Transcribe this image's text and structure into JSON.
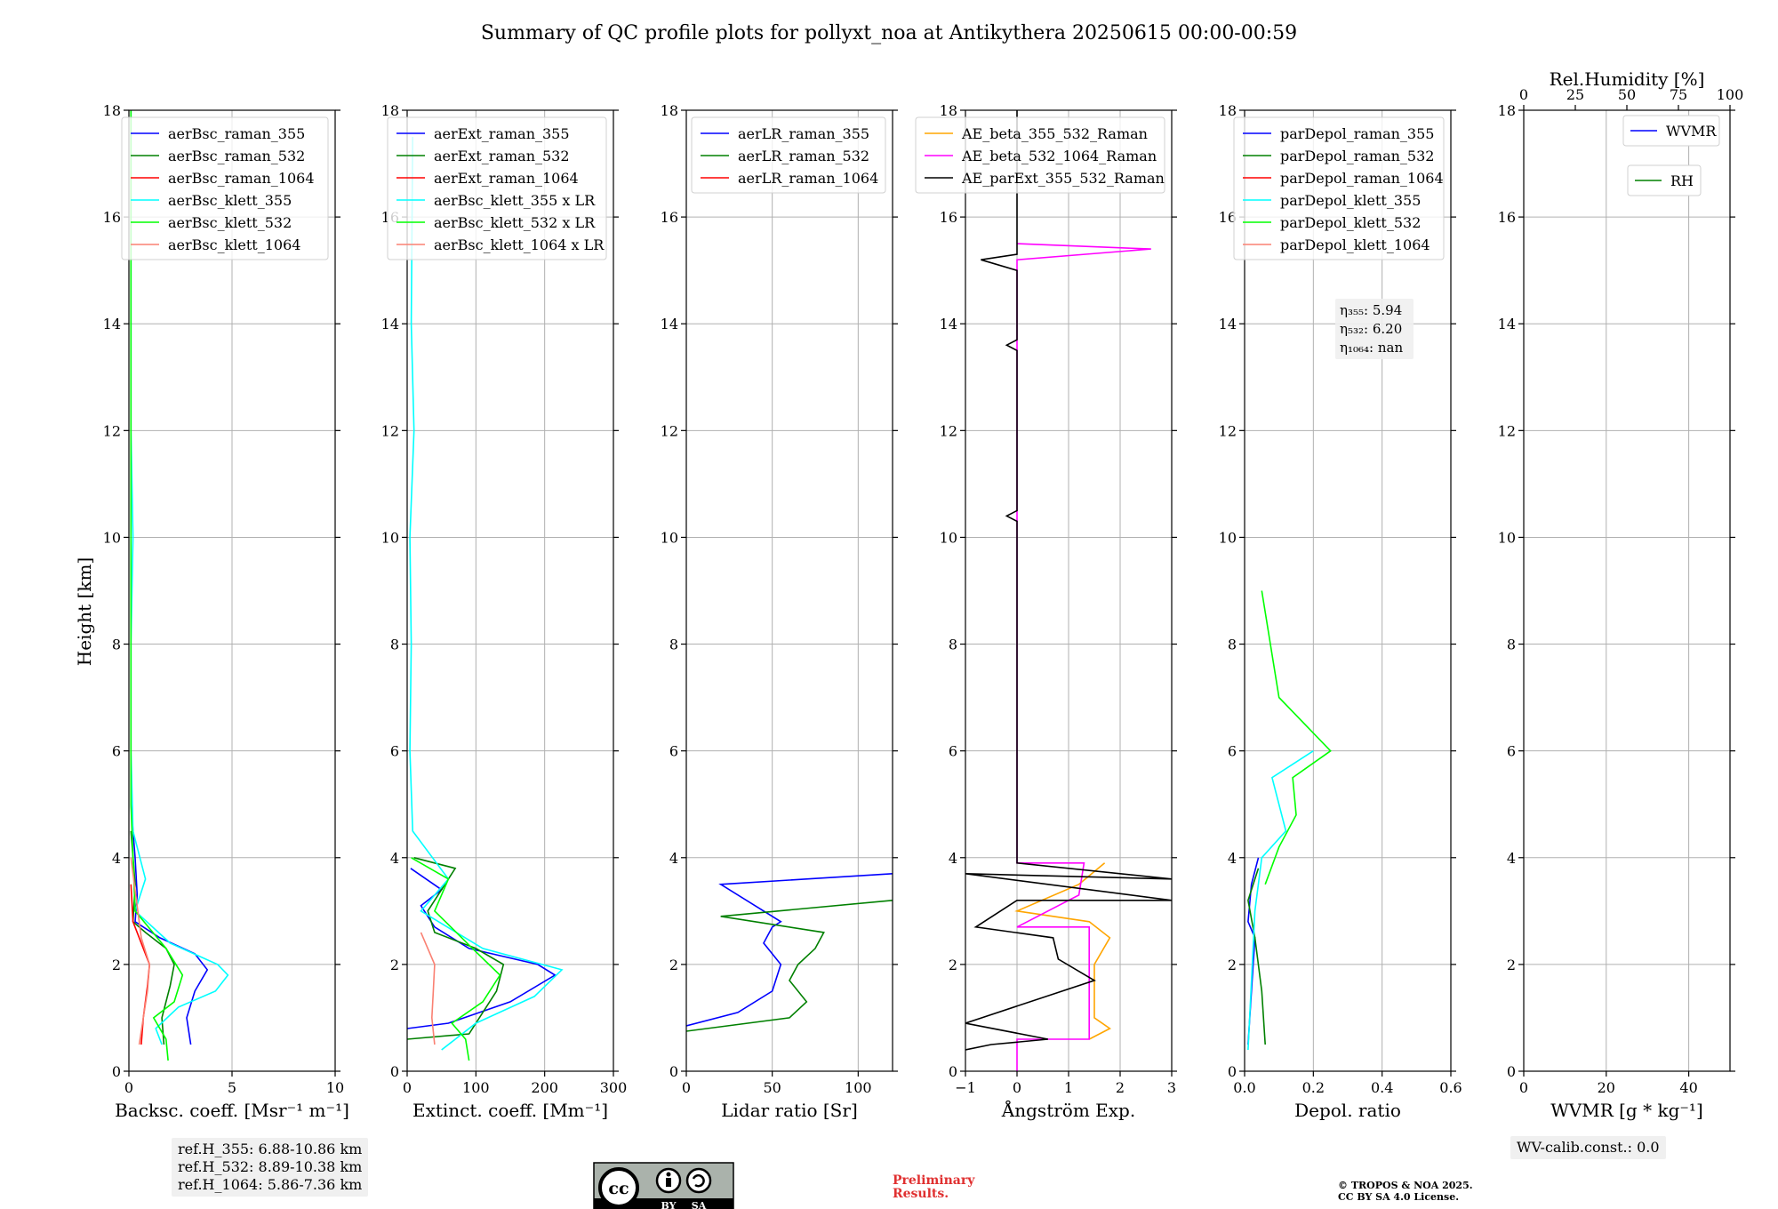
{
  "title": "Summary of QC profile plots for pollyxt_noa at Antikythera 20250615 00:00-00:59",
  "y_label": "Height [km]",
  "y_ticks": [
    "0",
    "2",
    "4",
    "6",
    "8",
    "10",
    "12",
    "14",
    "16",
    "18"
  ],
  "ref_heights": [
    "ref.H_355: 6.88-10.86 km",
    "ref.H_532: 8.89-10.38 km",
    "ref.H_1064: 5.86-7.36 km"
  ],
  "wv_calib": "WV-calib.const.: 0.0",
  "preliminary": [
    "Preliminary",
    "Results."
  ],
  "copyright": [
    "© TROPOS & NOA 2025.",
    "CC BY SA 4.0 License."
  ],
  "license_badge": {
    "by": "BY",
    "sa": "SA",
    "icon": "cc-by-sa-icon"
  },
  "colors": {
    "blue": "#0000ff",
    "green": "#008000",
    "red": "#ff0000",
    "cyan": "#00ffff",
    "lime": "#00ff00",
    "salmon": "#fa8072",
    "orange": "#ffa500",
    "magenta": "#ff00ff",
    "black": "#000000"
  },
  "chart_data": [
    {
      "type": "line",
      "xlabel": "Backsc. coeff. [Msr⁻¹ m⁻¹]",
      "xlim": [
        0,
        10
      ],
      "x_ticks": [
        "0",
        "5",
        "10"
      ],
      "ylim": [
        0,
        18
      ],
      "legend_position": "top-right",
      "grid": true,
      "series": [
        {
          "name": "aerBsc_raman_355",
          "color": "#0000ff",
          "points": [
            [
              3.0,
              0.5
            ],
            [
              2.8,
              1.0
            ],
            [
              3.2,
              1.5
            ],
            [
              3.8,
              1.9
            ],
            [
              3.2,
              2.2
            ],
            [
              1.5,
              2.5
            ],
            [
              0.3,
              2.8
            ],
            [
              0.4,
              3.3
            ],
            [
              0.3,
              4.0
            ],
            [
              0.1,
              5
            ]
          ]
        },
        {
          "name": "aerBsc_raman_532",
          "color": "#008000",
          "points": [
            [
              1.7,
              0.5
            ],
            [
              1.6,
              1.0
            ],
            [
              2.0,
              1.6
            ],
            [
              2.2,
              2.0
            ],
            [
              1.8,
              2.3
            ],
            [
              0.8,
              2.6
            ],
            [
              0.2,
              2.8
            ],
            [
              0.3,
              3.5
            ],
            [
              0.1,
              4.5
            ]
          ]
        },
        {
          "name": "aerBsc_raman_1064",
          "color": "#ff0000",
          "points": [
            [
              0.6,
              0.5
            ],
            [
              0.7,
              1.0
            ],
            [
              0.9,
              1.6
            ],
            [
              1.0,
              2.0
            ],
            [
              0.6,
              2.4
            ],
            [
              0.2,
              2.8
            ],
            [
              0.1,
              3.5
            ]
          ]
        },
        {
          "name": "aerBsc_klett_355",
          "color": "#00ffff",
          "points": [
            [
              0.1,
              18
            ],
            [
              0.1,
              12
            ],
            [
              0.2,
              10
            ],
            [
              0.1,
              8
            ],
            [
              0.1,
              6
            ],
            [
              0.2,
              4.5
            ],
            [
              0.8,
              3.6
            ],
            [
              0.3,
              3.0
            ],
            [
              2.0,
              2.4
            ],
            [
              4.3,
              2.0
            ],
            [
              4.8,
              1.8
            ],
            [
              4.2,
              1.5
            ],
            [
              2.4,
              1.2
            ],
            [
              1.3,
              0.8
            ],
            [
              1.6,
              0.5
            ]
          ]
        },
        {
          "name": "aerBsc_klett_532",
          "color": "#00ff00",
          "points": [
            [
              0.1,
              18
            ],
            [
              0.1,
              10
            ],
            [
              0.1,
              5
            ],
            [
              0.3,
              3.0
            ],
            [
              1.8,
              2.3
            ],
            [
              2.6,
              1.8
            ],
            [
              2.2,
              1.3
            ],
            [
              1.2,
              1.0
            ],
            [
              1.8,
              0.6
            ],
            [
              1.9,
              0.2
            ]
          ]
        },
        {
          "name": "aerBsc_klett_1064",
          "color": "#fa8072",
          "points": [
            [
              0.1,
              4
            ],
            [
              0.6,
              2.5
            ],
            [
              1.0,
              2.0
            ],
            [
              0.9,
              1.5
            ],
            [
              0.7,
              1.0
            ],
            [
              0.5,
              0.5
            ]
          ]
        }
      ]
    },
    {
      "type": "line",
      "xlabel": "Extinct. coeff. [Mm⁻¹]",
      "xlim": [
        0,
        300
      ],
      "x_ticks": [
        "0",
        "100",
        "200",
        "300"
      ],
      "ylim": [
        0,
        18
      ],
      "legend_position": "top-right",
      "grid": true,
      "series": [
        {
          "name": "aerExt_raman_355",
          "color": "#0000ff",
          "points": [
            [
              0,
              0.8
            ],
            [
              60,
              0.9
            ],
            [
              150,
              1.3
            ],
            [
              215,
              1.8
            ],
            [
              190,
              2.0
            ],
            [
              90,
              2.3
            ],
            [
              40,
              2.7
            ],
            [
              20,
              3.1
            ],
            [
              50,
              3.4
            ],
            [
              5,
              3.8
            ]
          ]
        },
        {
          "name": "aerExt_raman_532",
          "color": "#008000",
          "points": [
            [
              0,
              0.6
            ],
            [
              90,
              0.7
            ],
            [
              130,
              1.5
            ],
            [
              140,
              2.0
            ],
            [
              100,
              2.3
            ],
            [
              40,
              2.6
            ],
            [
              30,
              3.0
            ],
            [
              70,
              3.8
            ],
            [
              10,
              4.0
            ]
          ]
        },
        {
          "name": "aerExt_raman_1064",
          "color": "#ff0000",
          "points": []
        },
        {
          "name": "aerBsc_klett_355 x LR",
          "color": "#00ffff",
          "points": [
            [
              8,
              17.5
            ],
            [
              6,
              14
            ],
            [
              10,
              12
            ],
            [
              4,
              10
            ],
            [
              6,
              8
            ],
            [
              4,
              6
            ],
            [
              8,
              4.5
            ],
            [
              60,
              3.6
            ],
            [
              20,
              3.0
            ],
            [
              110,
              2.3
            ],
            [
              225,
              1.9
            ],
            [
              185,
              1.4
            ],
            [
              100,
              0.9
            ],
            [
              50,
              0.4
            ]
          ]
        },
        {
          "name": "aerBsc_klett_532 x LR",
          "color": "#00ff00",
          "points": [
            [
              6,
              4
            ],
            [
              60,
              3.6
            ],
            [
              40,
              3.0
            ],
            [
              95,
              2.3
            ],
            [
              135,
              1.8
            ],
            [
              110,
              1.3
            ],
            [
              65,
              0.9
            ],
            [
              85,
              0.6
            ],
            [
              90,
              0.2
            ]
          ]
        },
        {
          "name": "aerBsc_klett_1064 x LR",
          "color": "#fa8072",
          "points": [
            [
              20,
              2.6
            ],
            [
              40,
              2.0
            ],
            [
              38,
              1.5
            ],
            [
              36,
              1.0
            ],
            [
              40,
              0.5
            ]
          ]
        }
      ]
    },
    {
      "type": "line",
      "xlabel": "Lidar ratio [Sr]",
      "xlim": [
        0,
        120
      ],
      "x_ticks": [
        "0",
        "50",
        "100"
      ],
      "ylim": [
        0,
        18
      ],
      "legend_position": "top-right",
      "grid": true,
      "series": [
        {
          "name": "aerLR_raman_355",
          "color": "#0000ff",
          "points": [
            [
              0,
              0.85
            ],
            [
              30,
              1.1
            ],
            [
              50,
              1.5
            ],
            [
              55,
              2.0
            ],
            [
              45,
              2.4
            ],
            [
              50,
              2.7
            ],
            [
              55,
              2.8
            ],
            [
              20,
              3.5
            ],
            [
              120,
              3.7
            ]
          ]
        },
        {
          "name": "aerLR_raman_532",
          "color": "#008000",
          "points": [
            [
              0,
              0.75
            ],
            [
              60,
              1.0
            ],
            [
              70,
              1.3
            ],
            [
              60,
              1.7
            ],
            [
              65,
              2.0
            ],
            [
              75,
              2.3
            ],
            [
              80,
              2.6
            ],
            [
              20,
              2.9
            ],
            [
              120,
              3.2
            ]
          ]
        },
        {
          "name": "aerLR_raman_1064",
          "color": "#ff0000",
          "points": []
        }
      ]
    },
    {
      "type": "line",
      "xlabel": "Ångström Exp.",
      "xlim": [
        -1,
        3
      ],
      "x_ticks": [
        "−1",
        "0",
        "1",
        "2",
        "3"
      ],
      "ylim": [
        0,
        18
      ],
      "legend_position": "top-right",
      "grid": true,
      "series": [
        {
          "name": "AE_beta_355_532_Raman",
          "color": "#ffa500",
          "points": [
            [
              1.4,
              0.6
            ],
            [
              1.8,
              0.8
            ],
            [
              1.5,
              1.0
            ],
            [
              1.5,
              2.0
            ],
            [
              1.8,
              2.5
            ],
            [
              1.4,
              2.8
            ],
            [
              0,
              3.0
            ],
            [
              1.2,
              3.5
            ],
            [
              1.7,
              3.9
            ]
          ]
        },
        {
          "name": "AE_beta_532_1064_Raman",
          "color": "#ff00ff",
          "points": [
            [
              0,
              0
            ],
            [
              0,
              0.6
            ],
            [
              1.4,
              0.6
            ],
            [
              1.4,
              2.7
            ],
            [
              0,
              2.7
            ],
            [
              1.2,
              3.3
            ],
            [
              1.3,
              3.9
            ],
            [
              0,
              3.9
            ],
            [
              0,
              15.2
            ],
            [
              2.6,
              15.4
            ],
            [
              0,
              15.5
            ]
          ]
        },
        {
          "name": "AE_parExt_355_532_Raman",
          "color": "#000000",
          "points": [
            [
              -1,
              0.4
            ],
            [
              -0.5,
              0.5
            ],
            [
              0.6,
              0.6
            ],
            [
              -1,
              0.9
            ],
            [
              1.5,
              1.7
            ],
            [
              0.8,
              2.1
            ],
            [
              0.7,
              2.5
            ],
            [
              -0.8,
              2.7
            ],
            [
              0,
              3.2
            ],
            [
              3,
              3.2
            ],
            [
              -1,
              3.7
            ],
            [
              3,
              3.6
            ],
            [
              0,
              3.9
            ],
            [
              0,
              10.3
            ],
            [
              -0.2,
              10.4
            ],
            [
              0,
              10.5
            ],
            [
              0,
              13.5
            ],
            [
              -0.2,
              13.6
            ],
            [
              0,
              13.7
            ],
            [
              0,
              15.0
            ],
            [
              -0.7,
              15.2
            ],
            [
              0,
              15.3
            ],
            [
              0,
              18
            ]
          ]
        }
      ]
    },
    {
      "type": "line",
      "xlabel": "Depol. ratio",
      "xlim": [
        0,
        0.6
      ],
      "x_ticks": [
        "0.0",
        "0.2",
        "0.4",
        "0.6"
      ],
      "ylim": [
        0,
        18
      ],
      "legend_position": "top-right",
      "grid": true,
      "annotations": [
        "η₃₅₅: 5.94",
        "η₅₃₂: 6.20",
        "η₁₀₆₄: nan"
      ],
      "series": [
        {
          "name": "parDepol_raman_355",
          "color": "#0000ff",
          "points": [
            [
              0.01,
              0.5
            ],
            [
              0.02,
              1.5
            ],
            [
              0.03,
              2.5
            ],
            [
              0.01,
              2.8
            ],
            [
              0.02,
              3.5
            ],
            [
              0.04,
              4.0
            ]
          ]
        },
        {
          "name": "parDepol_raman_532",
          "color": "#008000",
          "points": [
            [
              0.06,
              0.5
            ],
            [
              0.05,
              1.5
            ],
            [
              0.03,
              2.5
            ],
            [
              0.01,
              3.2
            ],
            [
              0.04,
              3.8
            ]
          ]
        },
        {
          "name": "parDepol_raman_1064",
          "color": "#ff0000",
          "points": []
        },
        {
          "name": "parDepol_klett_355",
          "color": "#00ffff",
          "points": [
            [
              0.01,
              0.4
            ],
            [
              0.03,
              3.0
            ],
            [
              0.05,
              4.0
            ],
            [
              0.12,
              4.5
            ],
            [
              0.08,
              5.5
            ],
            [
              0.2,
              6.0
            ]
          ]
        },
        {
          "name": "parDepol_klett_532",
          "color": "#00ff00",
          "points": [
            [
              0.06,
              3.5
            ],
            [
              0.1,
              4.2
            ],
            [
              0.15,
              4.8
            ],
            [
              0.14,
              5.5
            ],
            [
              0.25,
              6.0
            ],
            [
              0.1,
              7.0
            ],
            [
              0.05,
              9.0
            ]
          ]
        },
        {
          "name": "parDepol_klett_1064",
          "color": "#fa8072",
          "points": []
        }
      ]
    },
    {
      "type": "line",
      "xlabel": "WVMR [g * kg⁻¹]",
      "top_label": "Rel.Humidity [%]",
      "xlim": [
        0,
        50
      ],
      "x_ticks": [
        "0",
        "20",
        "40"
      ],
      "top_xlim": [
        0,
        100
      ],
      "top_ticks": [
        "0",
        "25",
        "50",
        "75",
        "100"
      ],
      "ylim": [
        0,
        18
      ],
      "legend_position": "top-right",
      "grid": true,
      "series": [
        {
          "name": "WVMR",
          "color": "#0000ff",
          "points": []
        },
        {
          "name": "RH",
          "color": "#008000",
          "points": []
        }
      ]
    }
  ]
}
